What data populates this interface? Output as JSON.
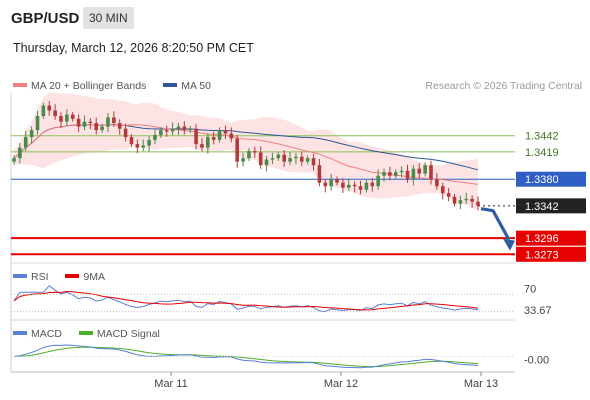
{
  "header": {
    "symbol": "GBP/USD",
    "timeframe": "30 MIN",
    "datetime": "Thursday, March 12, 2026 8:20:50 PM CET"
  },
  "legend_main": {
    "ma20": "MA 20 + Bollinger Bands",
    "ma50": "MA 50",
    "credit": "Research © 2026 Trading Central"
  },
  "legend_rsi": {
    "rsi": "RSI",
    "ma": "9MA"
  },
  "legend_macd": {
    "macd": "MACD",
    "signal": "MACD Signal"
  },
  "colors": {
    "ma20": "#f08080",
    "bands": "#fde0e0",
    "ma50": "#2f5597",
    "up": "#4a8a4a",
    "down": "#b23a3a",
    "green_level": "#8bbf5a",
    "blue_level": "#2f5fc4",
    "red_level": "#e60000",
    "arrow": "#2f5fa0",
    "rsi": "#5b7fd6",
    "rsi_ma": "#e60000",
    "macd": "#5b7fd6",
    "macd_signal": "#4caf2a"
  },
  "chart_data": {
    "type": "line",
    "x_ticks": [
      "Mar 11",
      "Mar 12",
      "Mar 13"
    ],
    "ylim": [
      1.3262,
      1.35
    ],
    "levels": [
      {
        "value": 1.3442,
        "label": "1.3442",
        "kind": "resistance"
      },
      {
        "value": 1.3419,
        "label": "1.3419",
        "kind": "resistance"
      },
      {
        "value": 1.338,
        "label": "1.3380",
        "kind": "pivot"
      },
      {
        "value": 1.3342,
        "label": "1.3342",
        "kind": "last"
      },
      {
        "value": 1.3296,
        "label": "1.3296",
        "kind": "support"
      },
      {
        "value": 1.3273,
        "label": "1.3273",
        "kind": "support"
      }
    ],
    "projection": {
      "from": 1.3338,
      "to": 1.3281
    },
    "price_close": [
      1.341,
      1.3425,
      1.344,
      1.345,
      1.347,
      1.3485,
      1.3478,
      1.347,
      1.3462,
      1.3472,
      1.3466,
      1.3455,
      1.3462,
      1.346,
      1.345,
      1.3455,
      1.3468,
      1.346,
      1.3452,
      1.344,
      1.343,
      1.3425,
      1.3428,
      1.3436,
      1.3443,
      1.345,
      1.3448,
      1.3452,
      1.3455,
      1.345,
      1.3452,
      1.343,
      1.3425,
      1.344,
      1.3436,
      1.345,
      1.3445,
      1.3438,
      1.3405,
      1.341,
      1.342,
      1.3418,
      1.34,
      1.3408,
      1.341,
      1.3415,
      1.3405,
      1.341,
      1.3412,
      1.3405,
      1.341,
      1.34,
      1.3375,
      1.337,
      1.338,
      1.3375,
      1.3368,
      1.3372,
      1.337,
      1.3365,
      1.3375,
      1.337,
      1.3385,
      1.339,
      1.3385,
      1.339,
      1.3392,
      1.338,
      1.3395,
      1.3388,
      1.34,
      1.338,
      1.337,
      1.336,
      1.3355,
      1.3345,
      1.335,
      1.3352,
      1.3348,
      1.3342
    ],
    "rsi_last": 33.67,
    "rsi_levels": [
      70,
      30
    ],
    "macd_last": -0.0
  }
}
